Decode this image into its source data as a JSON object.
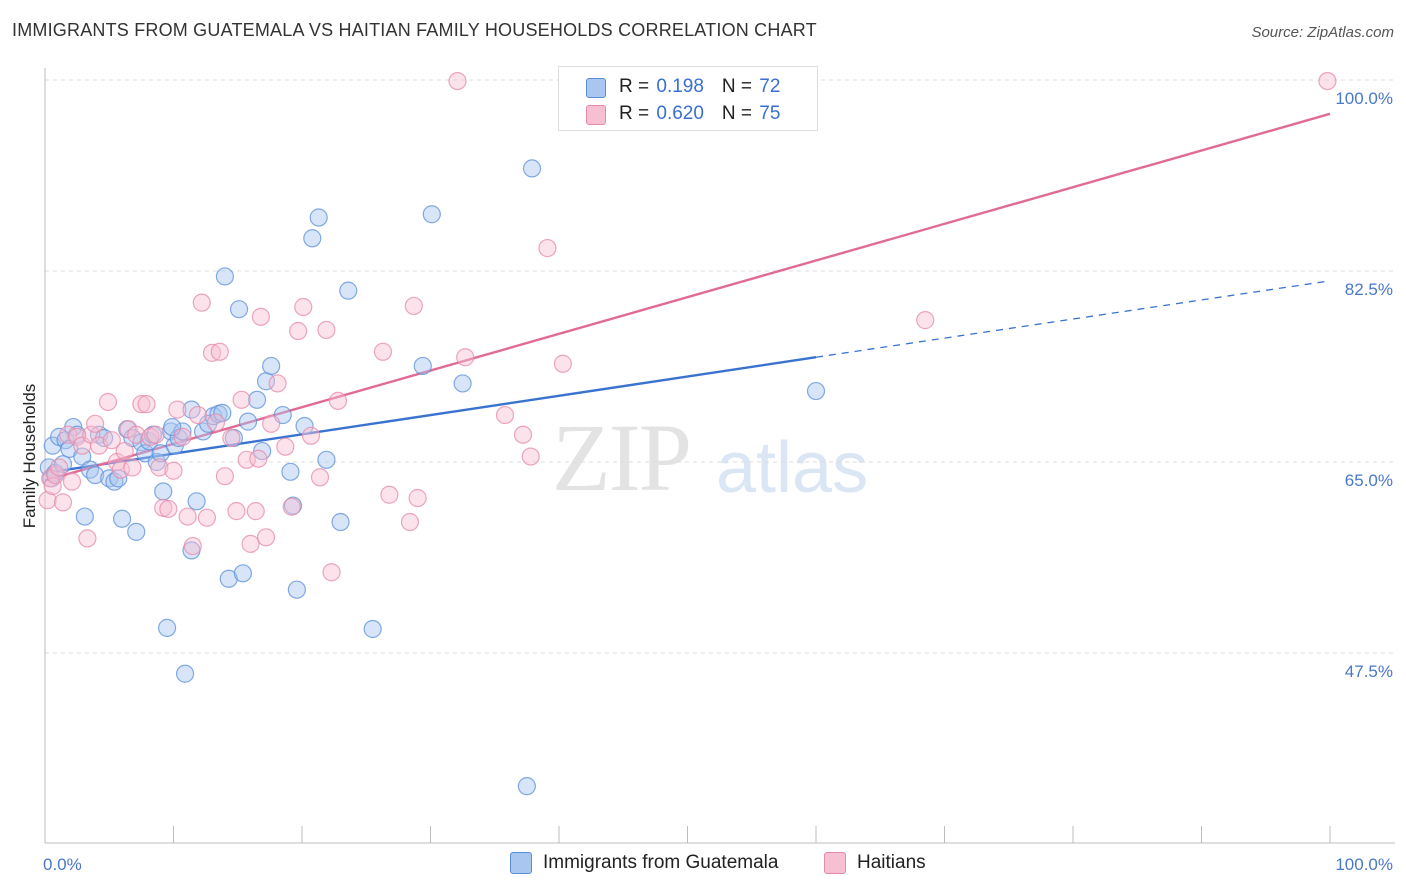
{
  "title": "IMMIGRANTS FROM GUATEMALA VS HAITIAN FAMILY HOUSEHOLDS CORRELATION CHART",
  "source": "Source: ZipAtlas.com",
  "watermark": {
    "zip": "ZIP",
    "atlas": "atlas"
  },
  "legend": {
    "rows": [
      {
        "r_label": "R = ",
        "r_value": "0.198",
        "n_label": "N = ",
        "n_value": "72",
        "color": "#a9c6f0",
        "border": "#5b8fd9"
      },
      {
        "r_label": "R = ",
        "r_value": "0.620",
        "n_label": "N = ",
        "n_value": "75",
        "color": "#f7bfd2",
        "border": "#e58aa9"
      }
    ]
  },
  "bottom_legend": {
    "guatemala": "Immigrants from Guatemala",
    "haitians": "Haitians"
  },
  "chart_data": {
    "type": "scatter",
    "title": "IMMIGRANTS FROM GUATEMALA VS HAITIAN FAMILY HOUSEHOLDS CORRELATION CHART",
    "xlabel": "",
    "ylabel": "Family Households",
    "xlim": [
      0,
      100
    ],
    "ylim": [
      30,
      100
    ],
    "x_ticks": [
      "0.0%",
      "100.0%"
    ],
    "y_ticks": [
      {
        "value": 100,
        "label": "100.0%"
      },
      {
        "value": 82.5,
        "label": "82.5%"
      },
      {
        "value": 65,
        "label": "65.0%"
      },
      {
        "value": 47.5,
        "label": "47.5%"
      }
    ],
    "grid": true,
    "legend_position": "top-center",
    "series": [
      {
        "name": "Immigrants from Guatemala",
        "color": "#5b8fd9",
        "fill": "#a9c6f0",
        "trend": {
          "x1": 0,
          "y1": 64.0,
          "x2": 60,
          "y2": 74.6,
          "dash_x2": 100,
          "dash_y2": 81.6,
          "color": "#3a72d0"
        },
        "points": [
          [
            0.3,
            64.5
          ],
          [
            0.5,
            63.5
          ],
          [
            0.6,
            66.5
          ],
          [
            0.8,
            64.0
          ],
          [
            1.1,
            67.3
          ],
          [
            1.4,
            64.8
          ],
          [
            1.6,
            67.0
          ],
          [
            1.9,
            66.2
          ],
          [
            2.2,
            68.2
          ],
          [
            2.5,
            67.5
          ],
          [
            2.9,
            65.5
          ],
          [
            3.1,
            60.0
          ],
          [
            3.5,
            64.3
          ],
          [
            3.9,
            63.8
          ],
          [
            4.2,
            67.5
          ],
          [
            4.6,
            67.2
          ],
          [
            5.0,
            63.5
          ],
          [
            5.4,
            63.2
          ],
          [
            5.7,
            63.5
          ],
          [
            6.0,
            59.8
          ],
          [
            6.4,
            68.0
          ],
          [
            6.8,
            67.2
          ],
          [
            7.1,
            58.6
          ],
          [
            7.5,
            66.8
          ],
          [
            7.8,
            65.8
          ],
          [
            8.1,
            66.9
          ],
          [
            8.4,
            67.5
          ],
          [
            8.7,
            65.0
          ],
          [
            9.0,
            65.8
          ],
          [
            9.2,
            62.3
          ],
          [
            9.5,
            49.8
          ],
          [
            9.8,
            67.8
          ],
          [
            10.1,
            66.5
          ],
          [
            10.4,
            67.2
          ],
          [
            10.7,
            67.8
          ],
          [
            10.9,
            45.6
          ],
          [
            11.4,
            56.9
          ],
          [
            11.8,
            61.4
          ],
          [
            12.3,
            67.8
          ],
          [
            12.7,
            68.5
          ],
          [
            13.1,
            69.2
          ],
          [
            13.5,
            69.4
          ],
          [
            14.0,
            82.0
          ],
          [
            14.3,
            54.3
          ],
          [
            14.7,
            67.2
          ],
          [
            15.1,
            79.0
          ],
          [
            15.4,
            54.8
          ],
          [
            15.8,
            68.7
          ],
          [
            16.5,
            70.7
          ],
          [
            16.9,
            66.0
          ],
          [
            17.2,
            72.4
          ],
          [
            17.6,
            73.8
          ],
          [
            18.5,
            69.3
          ],
          [
            19.1,
            64.1
          ],
          [
            19.3,
            61.0
          ],
          [
            19.6,
            53.3
          ],
          [
            20.2,
            68.3
          ],
          [
            20.8,
            85.5
          ],
          [
            21.3,
            87.4
          ],
          [
            21.9,
            65.2
          ],
          [
            23.0,
            59.5
          ],
          [
            23.6,
            80.7
          ],
          [
            25.5,
            49.7
          ],
          [
            29.4,
            73.8
          ],
          [
            30.1,
            87.7
          ],
          [
            32.5,
            72.2
          ],
          [
            37.5,
            35.3
          ],
          [
            37.9,
            91.9
          ],
          [
            60.0,
            71.5
          ],
          [
            11.4,
            69.8
          ],
          [
            13.8,
            69.5
          ],
          [
            9.9,
            68.2
          ]
        ]
      },
      {
        "name": "Haitians",
        "color": "#e58aa9",
        "fill": "#f7bfd2",
        "trend": {
          "x1": 0,
          "y1": 63.3,
          "x2": 100,
          "y2": 96.9,
          "color": "#e06b94"
        },
        "points": [
          [
            0.2,
            61.5
          ],
          [
            0.4,
            63.5
          ],
          [
            0.6,
            62.8
          ],
          [
            0.8,
            63.8
          ],
          [
            1.1,
            64.5
          ],
          [
            1.4,
            61.3
          ],
          [
            1.8,
            67.5
          ],
          [
            2.1,
            63.2
          ],
          [
            2.5,
            67.3
          ],
          [
            2.9,
            66.5
          ],
          [
            3.3,
            58.0
          ],
          [
            3.6,
            67.5
          ],
          [
            3.9,
            68.5
          ],
          [
            4.2,
            66.5
          ],
          [
            4.9,
            70.5
          ],
          [
            5.2,
            67.0
          ],
          [
            5.6,
            65.0
          ],
          [
            5.9,
            64.3
          ],
          [
            6.2,
            66.0
          ],
          [
            6.5,
            68.0
          ],
          [
            6.8,
            64.5
          ],
          [
            7.1,
            67.5
          ],
          [
            7.5,
            70.3
          ],
          [
            7.9,
            70.3
          ],
          [
            8.2,
            67.3
          ],
          [
            8.6,
            67.5
          ],
          [
            8.9,
            64.5
          ],
          [
            9.2,
            60.8
          ],
          [
            9.6,
            60.7
          ],
          [
            10.0,
            64.2
          ],
          [
            10.3,
            69.8
          ],
          [
            10.7,
            67.3
          ],
          [
            11.1,
            60.0
          ],
          [
            11.5,
            57.3
          ],
          [
            11.9,
            69.3
          ],
          [
            12.2,
            79.6
          ],
          [
            12.6,
            59.9
          ],
          [
            13.0,
            75.0
          ],
          [
            13.3,
            68.6
          ],
          [
            13.6,
            75.1
          ],
          [
            14.0,
            63.7
          ],
          [
            14.5,
            67.2
          ],
          [
            14.9,
            60.5
          ],
          [
            15.3,
            70.7
          ],
          [
            15.7,
            65.2
          ],
          [
            16.0,
            57.5
          ],
          [
            16.4,
            60.5
          ],
          [
            16.8,
            78.3
          ],
          [
            17.2,
            58.1
          ],
          [
            17.6,
            68.5
          ],
          [
            18.1,
            72.2
          ],
          [
            18.7,
            66.4
          ],
          [
            19.2,
            60.9
          ],
          [
            19.7,
            77.0
          ],
          [
            20.1,
            79.2
          ],
          [
            20.7,
            67.4
          ],
          [
            21.4,
            63.6
          ],
          [
            21.9,
            77.1
          ],
          [
            22.3,
            54.9
          ],
          [
            22.8,
            70.6
          ],
          [
            26.3,
            75.1
          ],
          [
            26.8,
            62.0
          ],
          [
            28.4,
            59.5
          ],
          [
            28.7,
            79.3
          ],
          [
            29.0,
            61.7
          ],
          [
            32.1,
            99.9
          ],
          [
            32.7,
            74.6
          ],
          [
            35.8,
            69.3
          ],
          [
            37.2,
            67.5
          ],
          [
            37.8,
            65.5
          ],
          [
            39.1,
            84.6
          ],
          [
            40.3,
            74.0
          ],
          [
            68.5,
            78.0
          ],
          [
            99.8,
            99.9
          ],
          [
            16.6,
            65.3
          ]
        ]
      }
    ]
  }
}
